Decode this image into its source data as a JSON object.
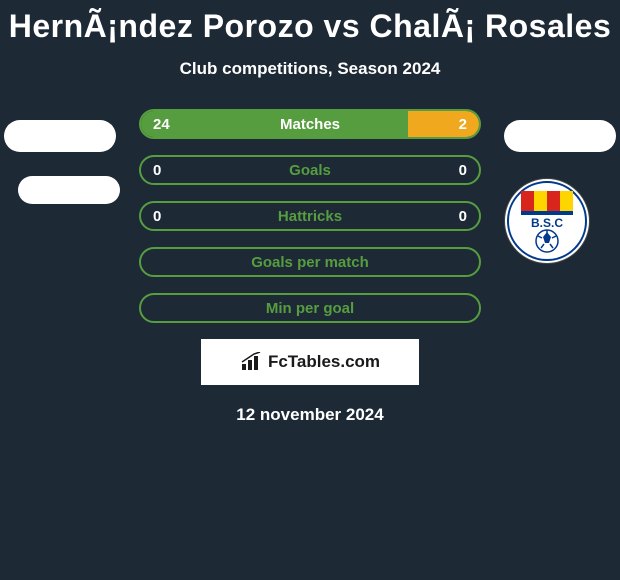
{
  "title": "HernÃ¡ndez Porozo vs ChalÃ¡ Rosales",
  "subtitle": "Club competitions, Season 2024",
  "colors": {
    "left_player": "#569d40",
    "right_player": "#f0a81e",
    "background": "#1d2935",
    "text_white": "#ffffff",
    "label_dark": "#224028"
  },
  "bars": [
    {
      "label": "Matches",
      "left": "24",
      "right": "2",
      "left_fill_pct": 79,
      "right_fill_pct": 21,
      "show_values": true,
      "label_color": "#ffffff"
    },
    {
      "label": "Goals",
      "left": "0",
      "right": "0",
      "left_fill_pct": 0,
      "right_fill_pct": 0,
      "show_values": true,
      "label_color": "#569d40"
    },
    {
      "label": "Hattricks",
      "left": "0",
      "right": "0",
      "left_fill_pct": 0,
      "right_fill_pct": 0,
      "show_values": true,
      "label_color": "#569d40"
    },
    {
      "label": "Goals per match",
      "left": "",
      "right": "",
      "left_fill_pct": 0,
      "right_fill_pct": 0,
      "show_values": false,
      "label_color": "#569d40"
    },
    {
      "label": "Min per goal",
      "left": "",
      "right": "",
      "left_fill_pct": 0,
      "right_fill_pct": 0,
      "show_values": false,
      "label_color": "#569d40"
    }
  ],
  "brand": "FcTables.com",
  "date": "12 november 2024",
  "club_badge_text": "B.S.C"
}
